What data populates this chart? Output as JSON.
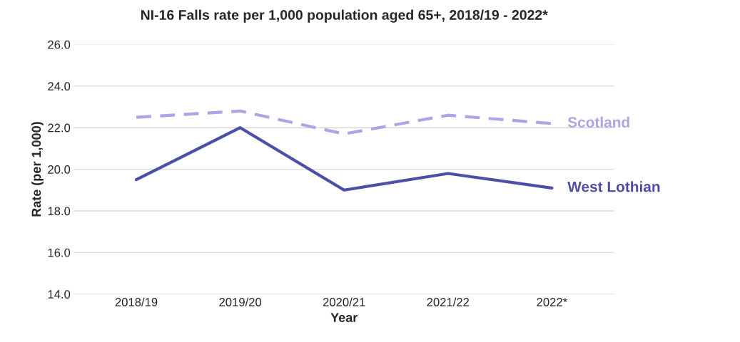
{
  "chart_data": {
    "type": "line",
    "title": "NI-16 Falls rate per 1,000 population aged 65+, 2018/19 - 2022*",
    "xlabel": "Year",
    "ylabel": "Rate (per 1,000)",
    "categories": [
      "2018/19",
      "2019/20",
      "2020/21",
      "2021/22",
      "2022*"
    ],
    "series": [
      {
        "name": "Scotland",
        "color": "#a9a6e6",
        "line_style": "dashed",
        "values": [
          22.5,
          22.8,
          21.7,
          22.6,
          22.2
        ]
      },
      {
        "name": "West Lothian",
        "color": "#4b4fa6",
        "line_style": "solid",
        "values": [
          19.5,
          22.0,
          19.0,
          19.8,
          19.1
        ]
      }
    ],
    "ylim": [
      14.0,
      26.0
    ],
    "yticks": [
      {
        "value": 14,
        "label": "14.0"
      },
      {
        "value": 16,
        "label": "16.0"
      },
      {
        "value": 18,
        "label": "18.0"
      },
      {
        "value": 20,
        "label": "20.0"
      },
      {
        "value": 22,
        "label": "22.0"
      },
      {
        "value": 24,
        "label": "24.0"
      },
      {
        "value": 26,
        "label": "26.0"
      }
    ],
    "grid": "y",
    "legend": false
  }
}
